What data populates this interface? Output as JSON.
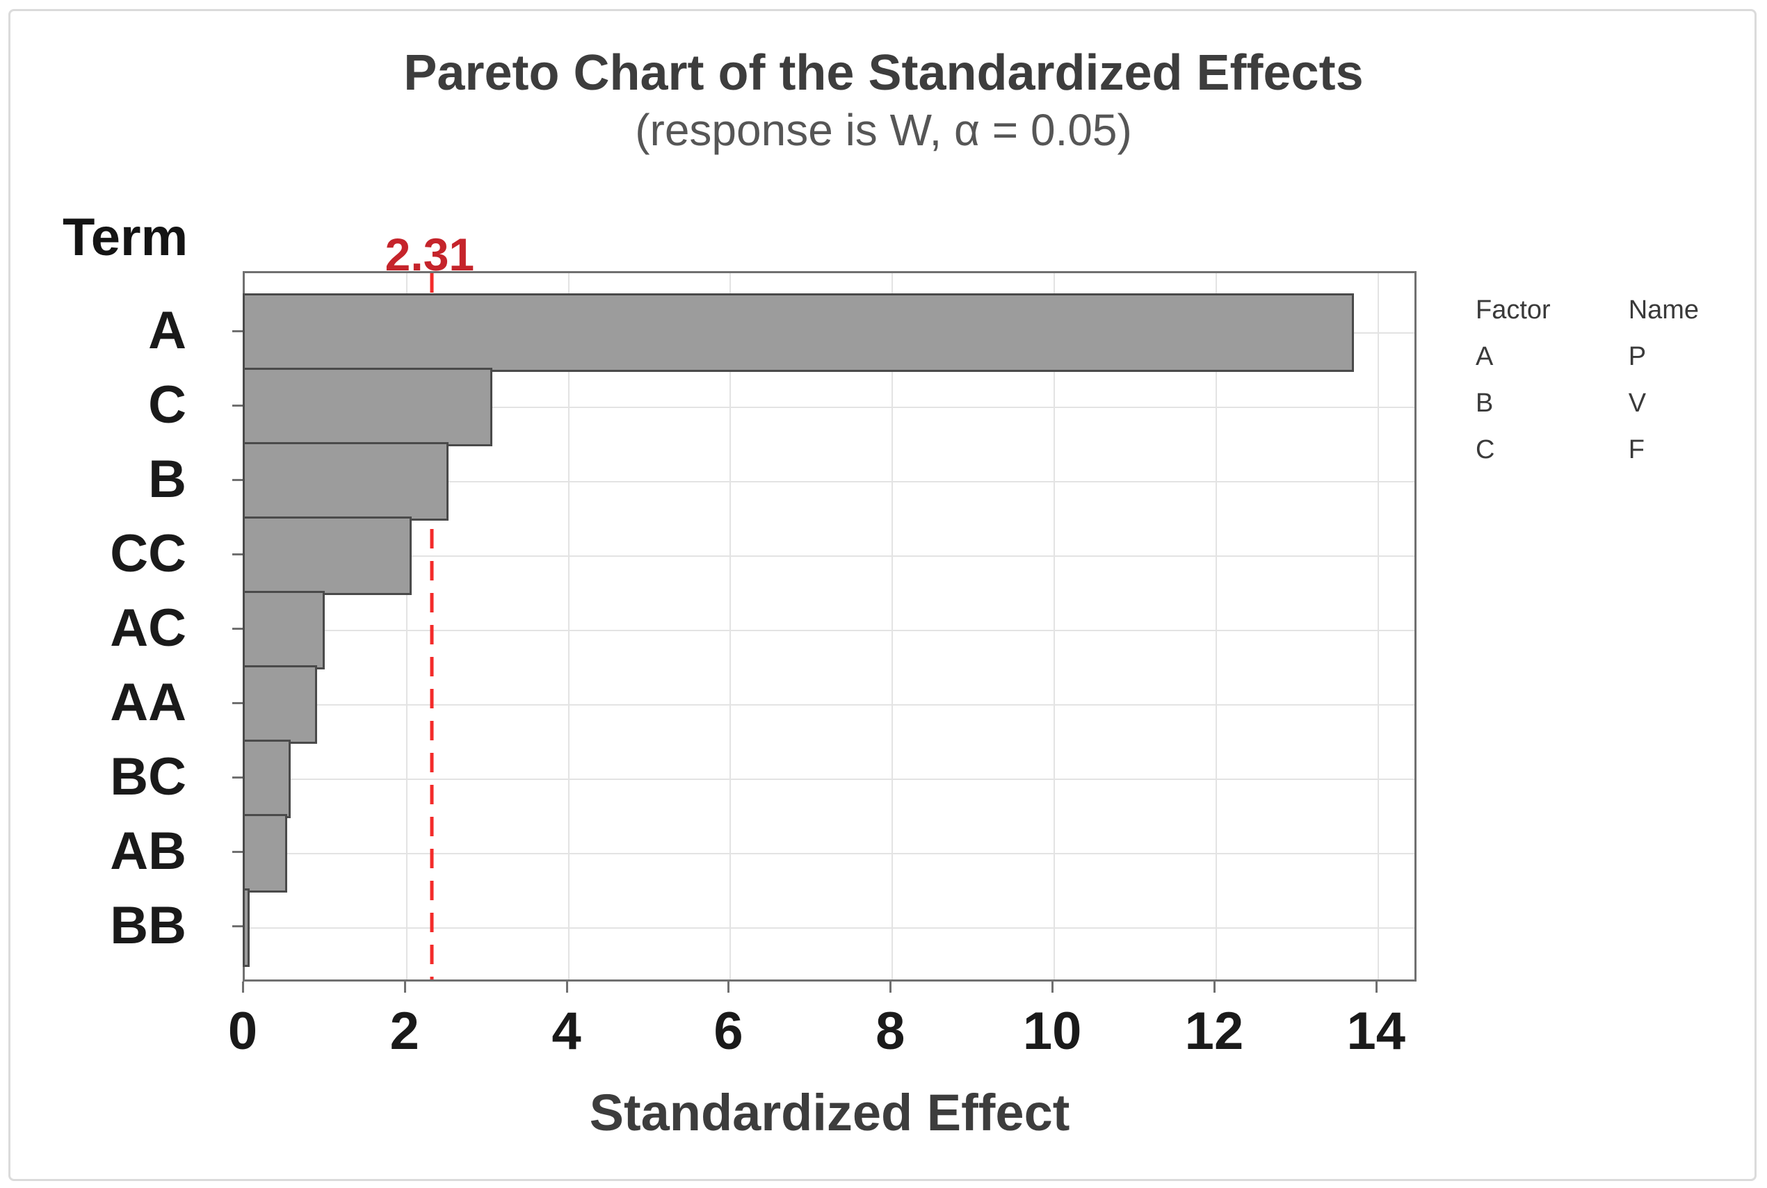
{
  "title": "Pareto Chart of the Standardized Effects",
  "subtitle": "(response is W, α = 0.05)",
  "y_axis_title": "Term",
  "x_axis_title": "Standardized Effect",
  "reference_line": {
    "label": "2.31",
    "value": 2.31
  },
  "legend": {
    "factor_header": "Factor",
    "name_header": "Name",
    "rows": [
      {
        "factor": "A",
        "name": "P"
      },
      {
        "factor": "B",
        "name": "V"
      },
      {
        "factor": "C",
        "name": "F"
      }
    ]
  },
  "chart_data": {
    "type": "bar",
    "orientation": "horizontal",
    "title": "Pareto Chart of the Standardized Effects",
    "subtitle": "(response is W, α = 0.05)",
    "xlabel": "Standardized Effect",
    "ylabel": "Term",
    "categories": [
      "A",
      "C",
      "B",
      "CC",
      "AC",
      "AA",
      "BC",
      "AB",
      "BB"
    ],
    "values": [
      13.7,
      3.06,
      2.52,
      2.06,
      0.99,
      0.89,
      0.57,
      0.52,
      0.06
    ],
    "xlim": [
      0,
      14.5
    ],
    "x_ticks": [
      0,
      2,
      4,
      6,
      8,
      10,
      12,
      14
    ],
    "reference_line_value": 2.31,
    "grid": true,
    "legend_position": "right",
    "colors": {
      "bar_fill": "#9c9c9c",
      "bar_border": "#4a4a4a",
      "reference_line": "#f32b2a",
      "reference_label": "#c5242b",
      "gridline": "#e3e3e3",
      "axis": "#707070",
      "title_text": "#3d3d3d",
      "subtitle_text": "#565656",
      "tick_text": "#1a1a1a"
    }
  }
}
